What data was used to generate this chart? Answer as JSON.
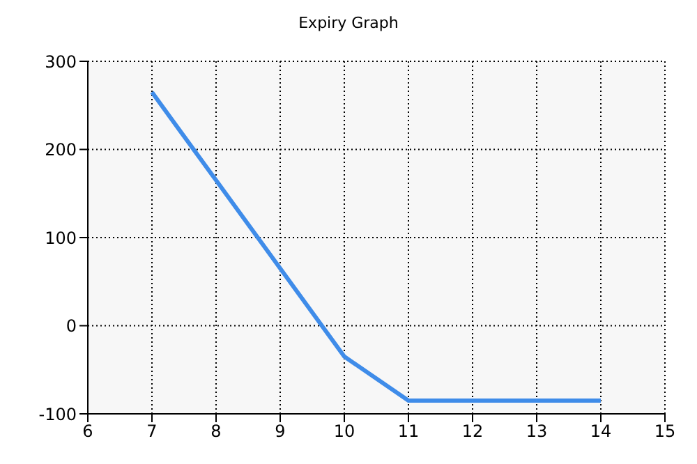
{
  "chart_data": {
    "type": "line",
    "title": "Expiry Graph",
    "x": [
      7,
      8,
      9,
      10,
      11,
      12,
      13,
      14
    ],
    "series": [
      {
        "color": "#3f8ce9",
        "values": [
          265,
          165,
          65,
          -35,
          -85,
          -85,
          -85,
          -85
        ]
      }
    ],
    "xlim": [
      6,
      15
    ],
    "xticks": [
      6,
      7,
      8,
      9,
      10,
      11,
      12,
      13,
      14,
      15
    ],
    "ylim": [
      -100,
      300
    ],
    "yticks": [
      -100,
      0,
      100,
      200,
      300
    ],
    "grid": true,
    "marker": "none",
    "line_style": "solid",
    "legend": false
  }
}
